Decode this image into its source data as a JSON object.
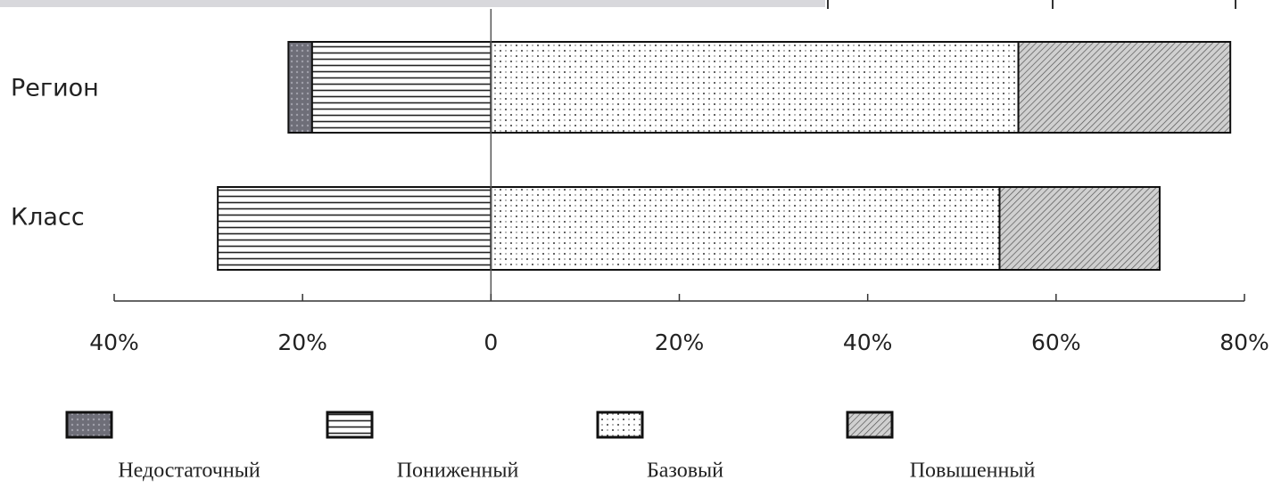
{
  "chart_data": {
    "type": "diverging-bar",
    "categories": [
      "Регион",
      "Класс"
    ],
    "series": [
      {
        "name": "Недостаточный",
        "color": "#6e6e78",
        "values": [
          -2.5,
          0
        ]
      },
      {
        "name": "Пониженный",
        "color": "#ffffff",
        "values": [
          -19,
          -29
        ]
      },
      {
        "name": "Базовый",
        "color": "#ffffff",
        "values": [
          56,
          54
        ]
      },
      {
        "name": "Повышенный",
        "color": "#bdbdbd",
        "values": [
          22.5,
          17
        ]
      }
    ],
    "xlim": [
      -40,
      80
    ],
    "xticks": [
      {
        "value": -40,
        "label": "40%"
      },
      {
        "value": -20,
        "label": "20%"
      },
      0,
      {
        "value": 20,
        "label": "20%"
      },
      {
        "value": 40,
        "label": "40%"
      },
      {
        "value": 60,
        "label": "60%"
      },
      {
        "value": 80,
        "label": "80%"
      }
    ]
  }
}
